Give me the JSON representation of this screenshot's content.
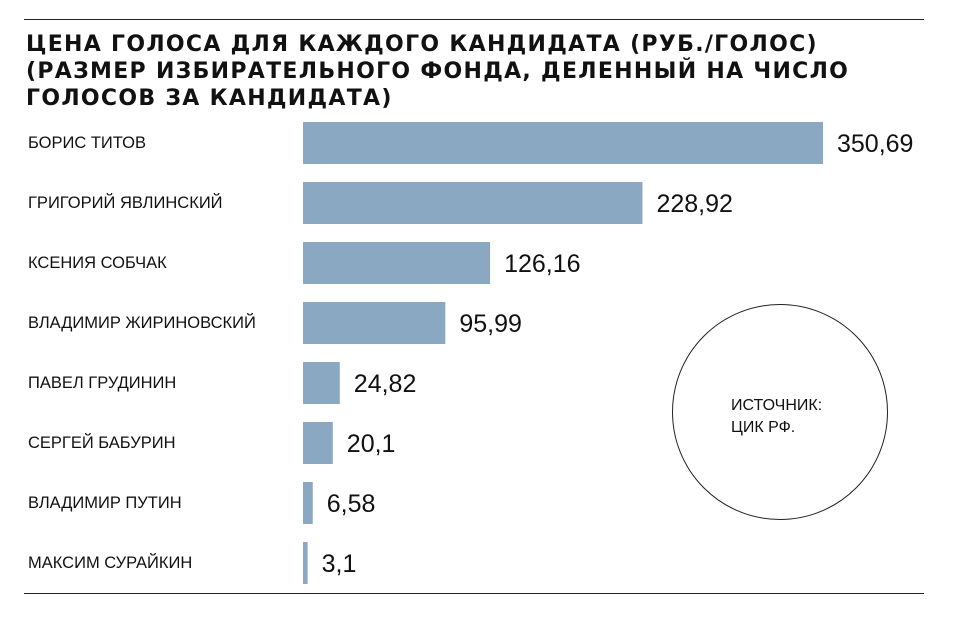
{
  "chart_data": {
    "type": "bar",
    "orientation": "horizontal",
    "title": [
      "ЦЕНА ГОЛОСА ДЛЯ КАЖДОГО КАНДИДАТА (РУБ./ГОЛОС)",
      "(РАЗМЕР ИЗБИРАТЕЛЬНОГО ФОНДА, ДЕЛЕННЫЙ НА ЧИСЛО",
      "ГОЛОСОВ ЗА КАНДИДАТА)"
    ],
    "categories": [
      "БОРИС ТИТОВ",
      "ГРИГОРИЙ ЯВЛИНСКИЙ",
      "КСЕНИЯ СОБЧАК",
      "ВЛАДИМИР ЖИРИНОВСКИЙ",
      "ПАВЕЛ ГРУДИНИН",
      "СЕРГЕЙ БАБУРИН",
      "ВЛАДИМИР ПУТИН",
      "МАКСИМ СУРАЙКИН"
    ],
    "values": [
      350.69,
      228.92,
      126.16,
      95.99,
      24.82,
      20.1,
      6.58,
      3.1
    ],
    "value_labels": [
      "350,69",
      "228,92",
      "126,16",
      "95,99",
      "24,82",
      "20,1",
      "6,58",
      "3,1"
    ],
    "bar_color": "#8ba8c3",
    "xlim": [
      0,
      350.69
    ],
    "grid": false,
    "legend": "none"
  },
  "source": {
    "line1": "ИСТОЧНИК:",
    "line2": "ЦИК РФ."
  }
}
